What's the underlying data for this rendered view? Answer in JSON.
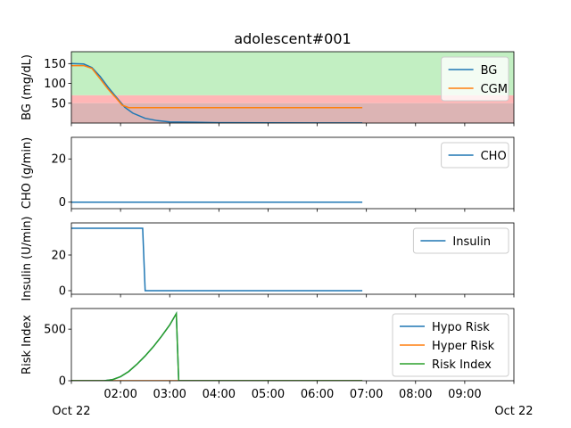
{
  "title": "adolescent#001",
  "x_axis": {
    "tick_labels": [
      "02:00",
      "03:00",
      "04:00",
      "05:00",
      "06:00",
      "07:00",
      "08:00",
      "09:00"
    ],
    "date_left": "Oct 22",
    "date_right": "Oct 22"
  },
  "chart_data": [
    {
      "type": "line",
      "ylabel": "BG (mg/dL)",
      "yticks": [
        50,
        100,
        150
      ],
      "ylim": [
        0,
        180
      ],
      "xlim": [
        "2018-10-22 01:00",
        "2018-10-22 10:00"
      ],
      "bands": [
        {
          "name": "normal",
          "from": 70,
          "to": 180,
          "color": "#c2efc2"
        },
        {
          "name": "hypoglycemia",
          "from": 50,
          "to": 70,
          "color": "#ffb6b6"
        },
        {
          "name": "severe-hypoglycemia",
          "from": 0,
          "to": 50,
          "color": "#dcb4b4"
        }
      ],
      "legend": {
        "position": "top-right",
        "entries": [
          "BG",
          "CGM"
        ]
      },
      "series": [
        {
          "name": "BG",
          "color": "#1f77b4",
          "x": [
            "01:00",
            "01:15",
            "01:25",
            "01:35",
            "01:45",
            "01:55",
            "02:05",
            "02:15",
            "02:30",
            "02:45",
            "03:00",
            "03:30",
            "04:00",
            "05:00",
            "06:00",
            "06:55"
          ],
          "y": [
            150,
            149,
            140,
            118,
            90,
            65,
            40,
            25,
            12,
            6,
            3,
            2,
            1,
            0.5,
            0.3,
            0.2
          ]
        },
        {
          "name": "CGM",
          "color": "#ff7f0e",
          "x": [
            "01:00",
            "01:15",
            "01:25",
            "01:35",
            "01:45",
            "01:55",
            "02:02",
            "02:10",
            "03:00",
            "04:00",
            "05:00",
            "06:00",
            "06:55"
          ],
          "y": [
            145,
            145,
            138,
            112,
            85,
            62,
            45,
            39,
            39,
            39,
            39,
            39,
            39
          ]
        }
      ]
    },
    {
      "type": "line",
      "ylabel": "CHO (g/min)",
      "yticks": [
        0,
        20
      ],
      "ylim": [
        -3,
        30
      ],
      "xlim": [
        "2018-10-22 01:00",
        "2018-10-22 10:00"
      ],
      "legend": {
        "position": "top-right",
        "entries": [
          "CHO"
        ]
      },
      "series": [
        {
          "name": "CHO",
          "color": "#1f77b4",
          "x": [
            "01:00",
            "06:55"
          ],
          "y": [
            0,
            0
          ]
        }
      ]
    },
    {
      "type": "line",
      "ylabel": "Insulin (U/min)",
      "yticks": [
        0,
        20
      ],
      "ylim": [
        -2,
        38
      ],
      "xlim": [
        "2018-10-22 01:00",
        "2018-10-22 10:00"
      ],
      "legend": {
        "position": "top-right",
        "entries": [
          "Insulin"
        ]
      },
      "series": [
        {
          "name": "Insulin",
          "color": "#1f77b4",
          "x": [
            "01:00",
            "02:27",
            "02:30",
            "06:55"
          ],
          "y": [
            35,
            35,
            0,
            0
          ]
        }
      ]
    },
    {
      "type": "line",
      "ylabel": "Risk Index",
      "yticks": [
        0,
        500
      ],
      "ylim": [
        0,
        700
      ],
      "xlim": [
        "2018-10-22 01:00",
        "2018-10-22 10:00"
      ],
      "legend": {
        "position": "top-right",
        "entries": [
          "Hypo Risk",
          "Hyper Risk",
          "Risk Index"
        ]
      },
      "series": [
        {
          "name": "Hypo Risk",
          "color": "#1f77b4",
          "x": [
            "01:00",
            "01:40",
            "01:50",
            "02:00",
            "02:10",
            "02:20",
            "02:30",
            "02:40",
            "02:50",
            "03:00",
            "03:08",
            "03:11",
            "06:55"
          ],
          "y": [
            0,
            0,
            10,
            40,
            90,
            160,
            240,
            330,
            430,
            540,
            650,
            0,
            0
          ]
        },
        {
          "name": "Hyper Risk",
          "color": "#ff7f0e",
          "x": [
            "01:00",
            "06:55"
          ],
          "y": [
            0,
            0
          ]
        },
        {
          "name": "Risk Index",
          "color": "#2ca02c",
          "x": [
            "01:00",
            "01:40",
            "01:50",
            "02:00",
            "02:10",
            "02:20",
            "02:30",
            "02:40",
            "02:50",
            "03:00",
            "03:08",
            "03:11",
            "06:55"
          ],
          "y": [
            0,
            0,
            10,
            40,
            90,
            160,
            240,
            330,
            430,
            540,
            650,
            0,
            0
          ]
        }
      ]
    }
  ]
}
